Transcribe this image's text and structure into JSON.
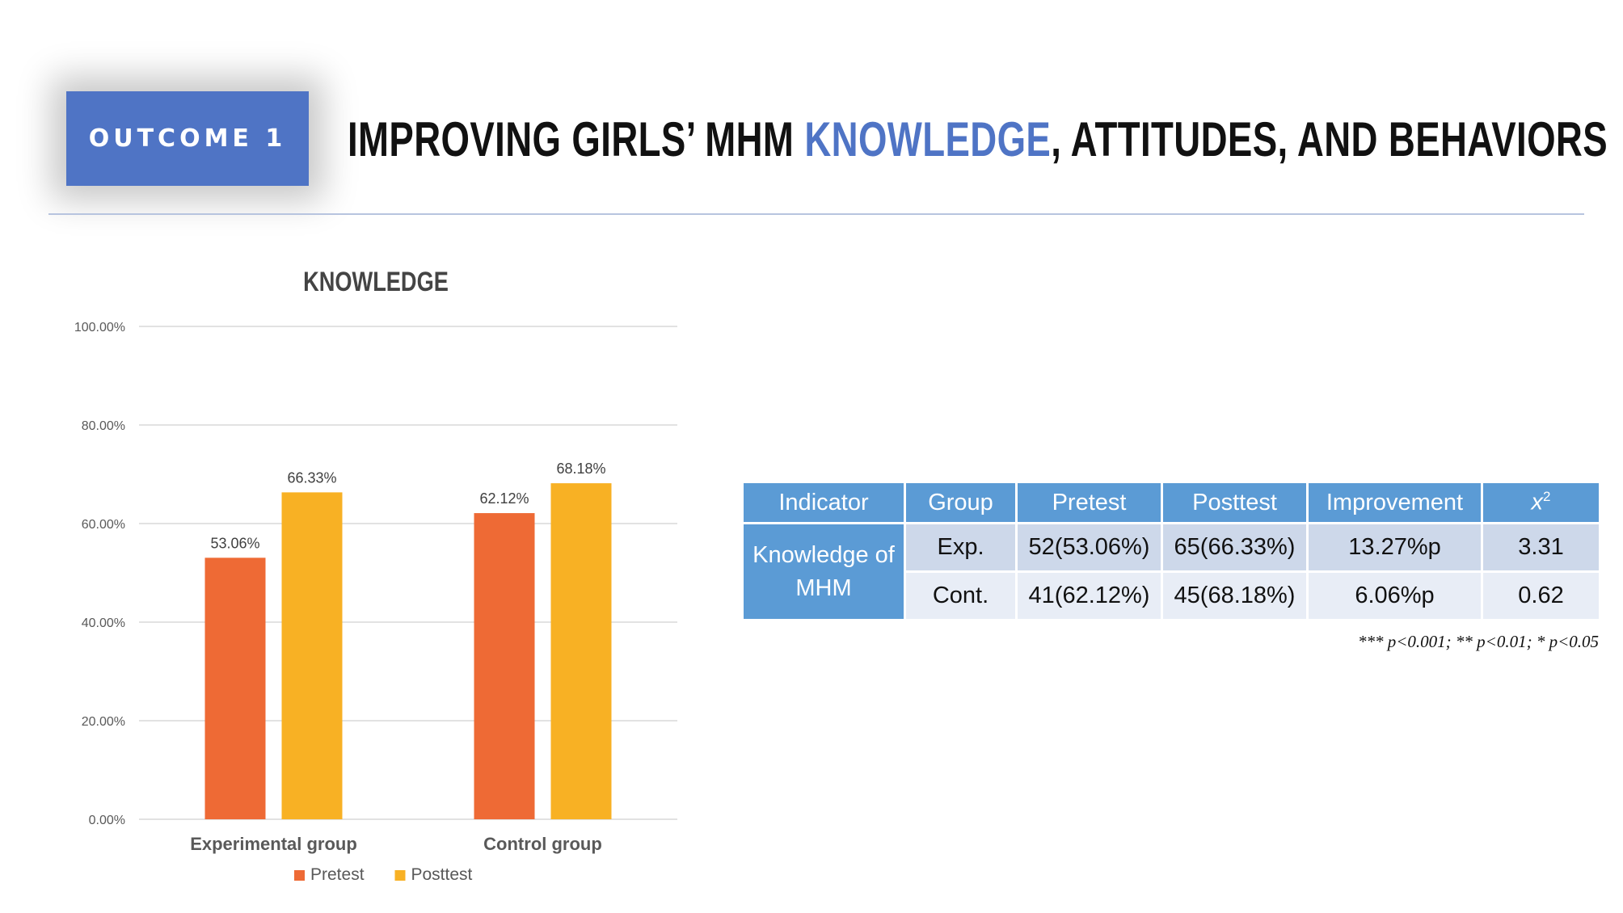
{
  "header": {
    "badge": "OUTCOME 1",
    "title_before": "IMPROVING GIRLS’ MHM ",
    "title_highlight": "KNOWLEDGE",
    "title_after": ", ATTITUDES, AND BEHAVIORS"
  },
  "colors": {
    "accent": "#4f74c5",
    "pretest": "#ee6a35",
    "posttest": "#f8b124",
    "table_header": "#5b9bd5"
  },
  "chart_data": {
    "type": "bar",
    "title": "KNOWLEDGE",
    "categories": [
      "Experimental group",
      "Control group"
    ],
    "series": [
      {
        "name": "Pretest",
        "values": [
          53.06,
          62.12
        ],
        "labels": [
          "53.06%",
          "62.12%"
        ]
      },
      {
        "name": "Posttest",
        "values": [
          66.33,
          68.18
        ],
        "labels": [
          "66.33%",
          "68.18%"
        ]
      }
    ],
    "ylim": [
      0,
      100
    ],
    "yticks": [
      0,
      20,
      40,
      60,
      80,
      100
    ],
    "ytick_labels": [
      "0.00%",
      "20.00%",
      "40.00%",
      "60.00%",
      "80.00%",
      "100.00%"
    ],
    "grid": true,
    "legend": "bottom"
  },
  "table": {
    "headers": [
      "Indicator",
      "Group",
      "Pretest",
      "Posttest",
      "Improvement",
      "x"
    ],
    "header_sup": "2",
    "indicator_line1": "Knowledge of",
    "indicator_line2": "MHM",
    "rows": [
      {
        "group": "Exp.",
        "pretest": "52(53.06%)",
        "posttest": "65(66.33%)",
        "improvement": "13.27%p",
        "chi": "3.31"
      },
      {
        "group": "Cont.",
        "pretest": "41(62.12%)",
        "posttest": "45(68.18%)",
        "improvement": "6.06%p",
        "chi": "0.62"
      }
    ],
    "note": "*** p<0.001; ** p<0.01; * p<0.05"
  }
}
